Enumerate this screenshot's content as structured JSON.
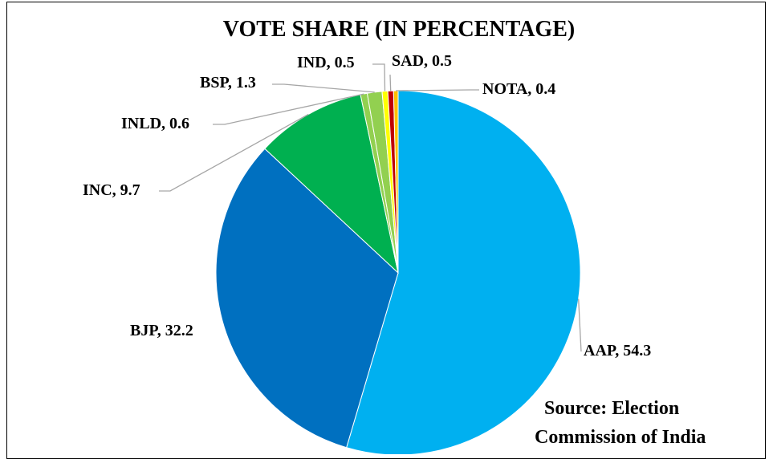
{
  "chart_data": {
    "type": "pie",
    "title": "VOTE SHARE (IN PERCENTAGE)",
    "categories": [
      "AAP",
      "BJP",
      "INC",
      "INLD",
      "BSP",
      "IND",
      "SAD",
      "NOTA"
    ],
    "values": [
      54.3,
      32.2,
      9.7,
      0.6,
      1.3,
      0.5,
      0.5,
      0.4
    ],
    "colors": [
      "#00B0F0",
      "#0070C0",
      "#00B050",
      "#92D050",
      "#92D050",
      "#FFFF00",
      "#C00000",
      "#FFC000"
    ],
    "data_labels": {
      "AAP": "AAP, 54.3",
      "BJP": "BJP, 32.2",
      "INC": "INC, 9.7",
      "INLD": "INLD, 0.6",
      "BSP": "BSP, 1.3",
      "IND": "IND, 0.5",
      "SAD": "SAD, 0.5",
      "NOTA": "NOTA, 0.4"
    },
    "annotation": [
      "Source: Election",
      "Commission of India"
    ]
  }
}
